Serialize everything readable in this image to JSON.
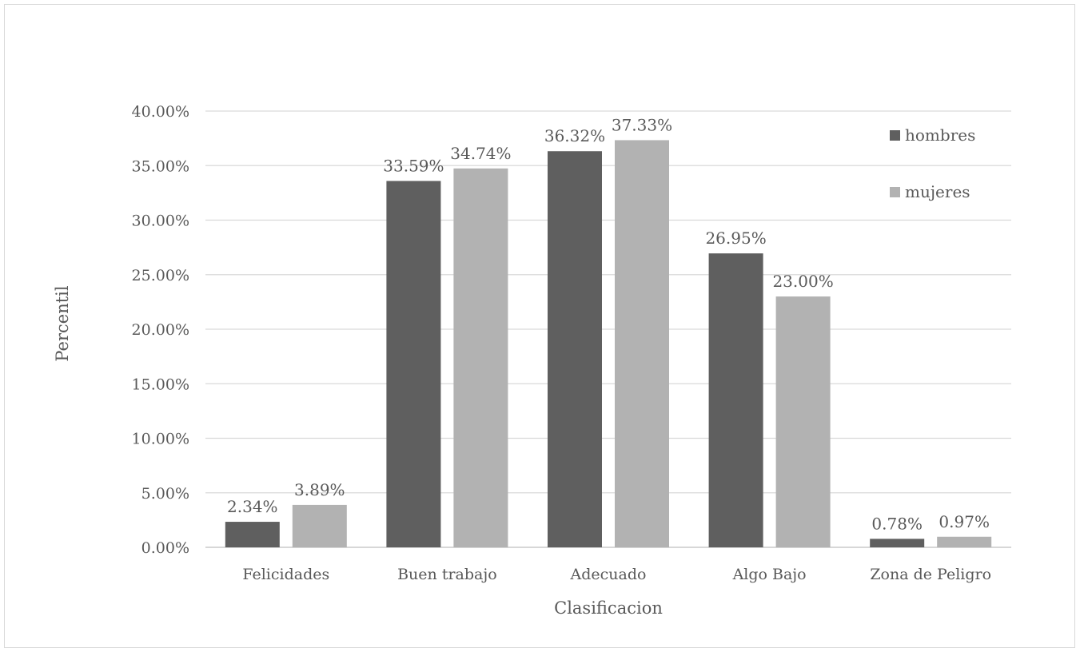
{
  "chart_data": {
    "type": "bar",
    "xlabel": "Clasificacion",
    "ylabel": "Percentil",
    "categories": [
      "Felicidades",
      "Buen trabajo",
      "Adecuado",
      "Algo Bajo",
      "Zona de Peligro"
    ],
    "series": [
      {
        "name": "hombres",
        "color": "#5f5f5f",
        "values": [
          2.34,
          33.59,
          36.32,
          26.95,
          0.78
        ],
        "labels": [
          "2.34%",
          "33.59%",
          "36.32%",
          "26.95%",
          "0.78%"
        ]
      },
      {
        "name": "mujeres",
        "color": "#b2b2b2",
        "values": [
          3.89,
          34.74,
          37.33,
          23.0,
          0.97
        ],
        "labels": [
          "3.89%",
          "34.74%",
          "37.33%",
          "23.00%",
          "0.97%"
        ]
      }
    ],
    "ylim": [
      0,
      40
    ],
    "yticks": [
      "0.00%",
      "5.00%",
      "10.00%",
      "15.00%",
      "20.00%",
      "25.00%",
      "30.00%",
      "35.00%",
      "40.00%"
    ],
    "grid": true,
    "legend_position": "top-right",
    "gridline_color": "#d9d9d9"
  }
}
